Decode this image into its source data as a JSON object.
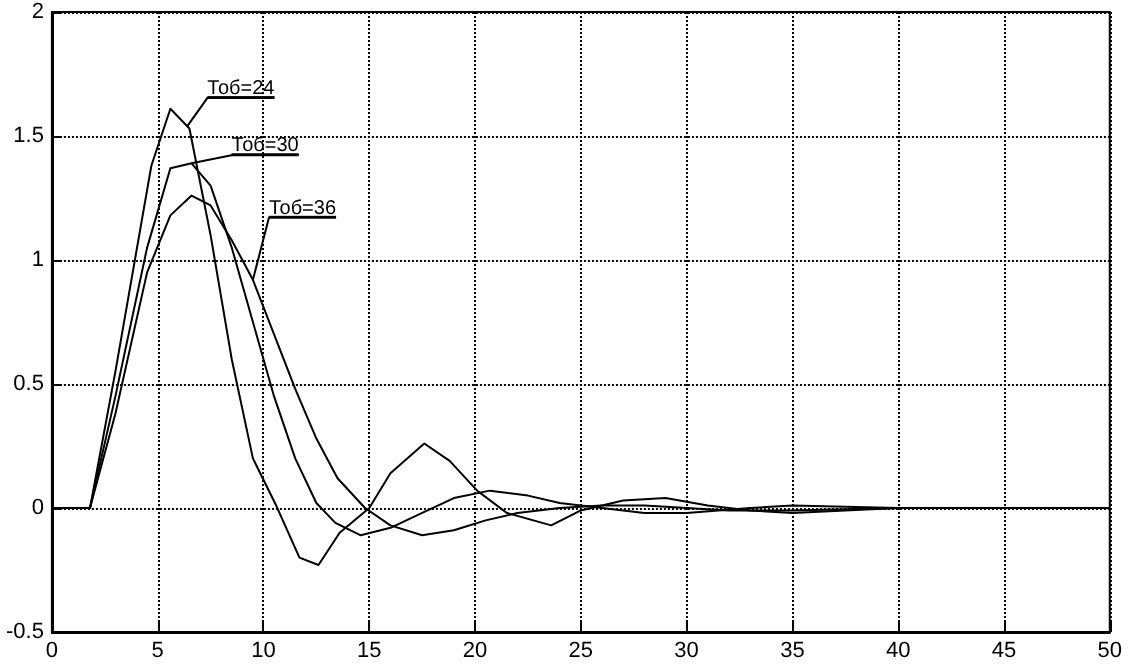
{
  "chart_data": {
    "type": "line",
    "xlim": [
      0,
      50
    ],
    "xticks": [
      0,
      5,
      10,
      15,
      20,
      25,
      30,
      35,
      40,
      45,
      50
    ],
    "ylim": [
      -0.5,
      2
    ],
    "yticks": [
      -0.5,
      0,
      0.5,
      1,
      1.5,
      2
    ],
    "grid": true,
    "marker": "none",
    "line_style": "solid",
    "series": [
      {
        "color": "#000000",
        "x": [
          0,
          1.8,
          3,
          4.7,
          5.6,
          6.5,
          7.5,
          8.5,
          9.5,
          10.6,
          11.7,
          12.6,
          13.6,
          15,
          16,
          17.6,
          18.8,
          20.1,
          21.5,
          23.6,
          25,
          27,
          29,
          31,
          33,
          35,
          40,
          45,
          50
        ],
        "values": [
          0,
          0,
          0.55,
          1.38,
          1.61,
          1.53,
          1.1,
          0.6,
          0.2,
          0.01,
          -0.2,
          -0.23,
          -0.1,
          0,
          0.14,
          0.26,
          0.19,
          0.07,
          -0.02,
          -0.07,
          -0.01,
          0.03,
          0.04,
          0.01,
          -0.01,
          -0.02,
          0,
          0,
          0
        ]
      },
      {
        "color": "#000000",
        "x": [
          0,
          1.8,
          3,
          4.5,
          5.6,
          6.6,
          7.5,
          8.5,
          9.5,
          10.5,
          11.5,
          12.5,
          13.4,
          14.6,
          16,
          17.5,
          19,
          20.7,
          22.5,
          24,
          26,
          28,
          30,
          33,
          35,
          40,
          50
        ],
        "values": [
          0,
          0,
          0.45,
          1.05,
          1.37,
          1.39,
          1.3,
          1.05,
          0.75,
          0.45,
          0.2,
          0.02,
          -0.06,
          -0.11,
          -0.08,
          -0.02,
          0.04,
          0.07,
          0.05,
          0.02,
          0,
          -0.02,
          -0.02,
          0,
          0.01,
          0,
          0
        ]
      },
      {
        "color": "#000000",
        "x": [
          0,
          1.8,
          3,
          4.5,
          5.6,
          6.6,
          7.5,
          8.5,
          9.5,
          10.5,
          11.5,
          12.5,
          13.5,
          14.8,
          16,
          17.5,
          19,
          20.5,
          22,
          24,
          26,
          28,
          30,
          32,
          35,
          40,
          50
        ],
        "values": [
          0,
          0,
          0.38,
          0.95,
          1.18,
          1.26,
          1.22,
          1.08,
          0.92,
          0.7,
          0.48,
          0.28,
          0.12,
          0,
          -0.07,
          -0.11,
          -0.09,
          -0.05,
          -0.02,
          0,
          0.01,
          0.01,
          0,
          -0.01,
          -0.01,
          0,
          0
        ]
      }
    ],
    "annotations": [
      {
        "text": "Тоб=24",
        "x": 6.4,
        "y": 1.54
      },
      {
        "text": "Тоб=30",
        "x": 6.6,
        "y": 1.39
      },
      {
        "text": "Тоб=36",
        "x": 9.5,
        "y": 0.92
      }
    ]
  }
}
